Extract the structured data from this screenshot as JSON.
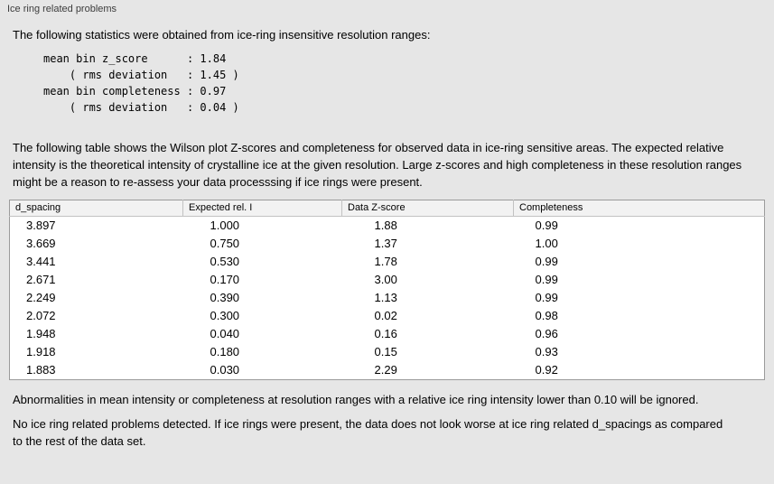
{
  "panel": {
    "title": "Ice ring related problems"
  },
  "intro_text": "The following statistics were obtained from ice-ring insensitive resolution ranges:",
  "stats_lines": [
    "mean bin z_score      : 1.84",
    "    ( rms deviation   : 1.45 )",
    "mean bin completeness : 0.97",
    "    ( rms deviation   : 0.04 )"
  ],
  "table_description": "The following table shows the Wilson plot Z-scores and completeness for observed data in ice-ring sensitive areas. The expected relative intensity is the theoretical intensity of crystalline ice at the given resolution. Large z-scores and high completeness in these resolution ranges might be a reason to re-assess your data processsing if ice rings were present.",
  "table": {
    "headers": [
      "d_spacing",
      "Expected rel. I",
      "Data Z-score",
      "Completeness"
    ],
    "rows": [
      [
        "3.897",
        "1.000",
        "1.88",
        "0.99"
      ],
      [
        "3.669",
        "0.750",
        "1.37",
        "1.00"
      ],
      [
        "3.441",
        "0.530",
        "1.78",
        "0.99"
      ],
      [
        "2.671",
        "0.170",
        "3.00",
        "0.99"
      ],
      [
        "2.249",
        "0.390",
        "1.13",
        "0.99"
      ],
      [
        "2.072",
        "0.300",
        "0.02",
        "0.98"
      ],
      [
        "1.948",
        "0.040",
        "0.16",
        "0.96"
      ],
      [
        "1.918",
        "0.180",
        "0.15",
        "0.93"
      ],
      [
        "1.883",
        "0.030",
        "2.29",
        "0.92"
      ]
    ]
  },
  "ignore_note": "Abnormalities in mean intensity or completeness at resolution ranges with a relative ice ring intensity lower than 0.10 will be ignored.",
  "conclusion": "No ice ring related problems detected. If ice rings were present, the data does not look worse at ice ring related d_spacings as compared to the rest of the data set.",
  "colors": {
    "background": "#e6e6e6",
    "table_background": "#ffffff",
    "table_border": "#9b9b9b",
    "header_background": "#f2f2f2"
  }
}
